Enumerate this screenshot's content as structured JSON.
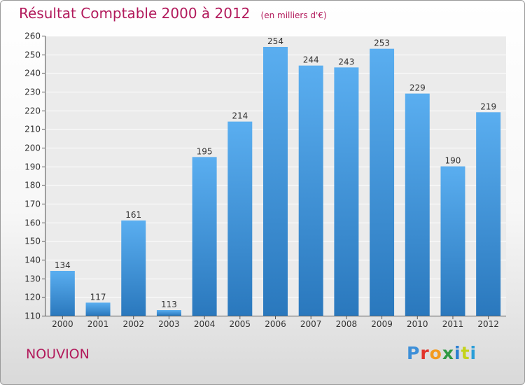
{
  "header": {
    "title": "Résultat Comptable 2000 à 2012",
    "subtitle": "(en milliers d'€)"
  },
  "footer": {
    "commune": "NOUVION",
    "logo": {
      "text": "Proxiti",
      "letters": [
        "P",
        "r",
        "o",
        "x",
        "i",
        "t",
        "i"
      ]
    }
  },
  "colors": {
    "bar_top": "#5aaef0",
    "bar_bottom": "#2a78bd",
    "title": "#b2195b"
  },
  "chart_data": {
    "type": "bar",
    "title": "Résultat Comptable 2000 à 2012",
    "subtitle": "(en milliers d'€)",
    "xlabel": "",
    "ylabel": "",
    "categories": [
      "2000",
      "2001",
      "2002",
      "2003",
      "2004",
      "2005",
      "2006",
      "2007",
      "2008",
      "2009",
      "2010",
      "2011",
      "2012"
    ],
    "values": [
      134,
      117,
      161,
      113,
      195,
      214,
      254,
      244,
      243,
      253,
      229,
      190,
      219
    ],
    "ylim": [
      110,
      260
    ],
    "yticks": [
      110,
      120,
      130,
      140,
      150,
      160,
      170,
      180,
      190,
      200,
      210,
      220,
      230,
      240,
      250,
      260
    ],
    "grid": true,
    "legend": "none"
  }
}
